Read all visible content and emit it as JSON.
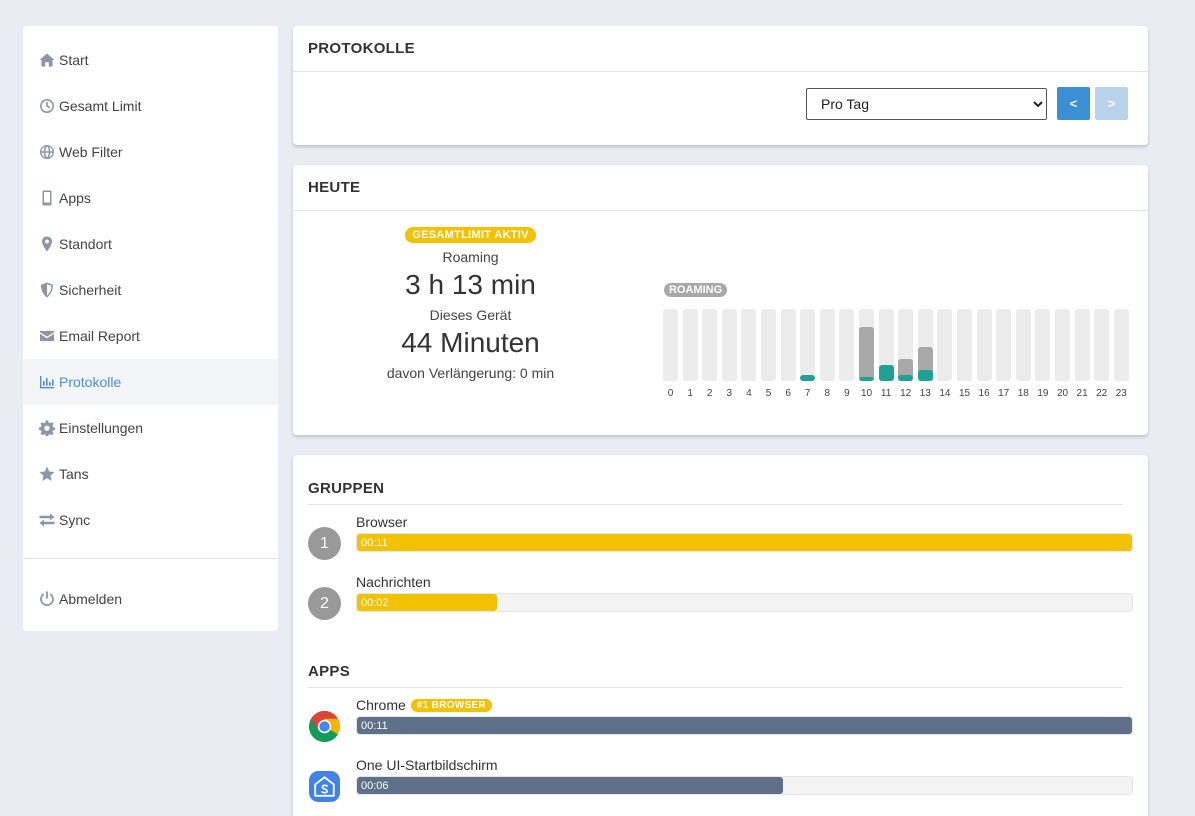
{
  "sidebar": {
    "items": [
      {
        "label": "Start",
        "icon": "home-icon"
      },
      {
        "label": "Gesamt Limit",
        "icon": "clock-icon"
      },
      {
        "label": "Web Filter",
        "icon": "globe-icon"
      },
      {
        "label": "Apps",
        "icon": "mobile-icon"
      },
      {
        "label": "Standort",
        "icon": "map-marker-icon"
      },
      {
        "label": "Sicherheit",
        "icon": "shield-icon"
      },
      {
        "label": "Email Report",
        "icon": "envelope-icon"
      },
      {
        "label": "Protokolle",
        "icon": "bar-chart-icon",
        "active": true
      },
      {
        "label": "Einstellungen",
        "icon": "gear-icon"
      },
      {
        "label": "Tans",
        "icon": "star-icon"
      },
      {
        "label": "Sync",
        "icon": "exchange-icon"
      }
    ],
    "logout": {
      "label": "Abmelden",
      "icon": "power-icon"
    }
  },
  "protokolle": {
    "title": "PROTOKOLLE",
    "period": {
      "selected": "Pro Tag",
      "options": [
        "Pro Tag"
      ]
    },
    "prev_label": "<",
    "next_label": ">"
  },
  "heute": {
    "title": "HEUTE",
    "badge": "GESAMTLIMIT AKTIV",
    "roaming_label": "Roaming",
    "roaming_value": "3 h 13 min",
    "device_label": "Dieses Gerät",
    "device_value": "44 Minuten",
    "extension": "davon Verlängerung: 0 min",
    "chart_badge": "ROAMING"
  },
  "chart_data": {
    "type": "bar",
    "categories": [
      "0",
      "1",
      "2",
      "3",
      "4",
      "5",
      "6",
      "7",
      "8",
      "9",
      "10",
      "11",
      "12",
      "13",
      "14",
      "15",
      "16",
      "17",
      "18",
      "19",
      "20",
      "21",
      "22",
      "23"
    ],
    "ylim": [
      0,
      60
    ],
    "series": [
      {
        "color": "#a8a8a8",
        "values": [
          0,
          0,
          0,
          0,
          0,
          0,
          0,
          0,
          0,
          0,
          45,
          0,
          18,
          28,
          0,
          0,
          0,
          0,
          0,
          0,
          0,
          0,
          0,
          0
        ]
      },
      {
        "color": "#1fa295",
        "values": [
          0,
          0,
          0,
          0,
          0,
          0,
          0,
          5,
          0,
          0,
          3,
          13,
          5,
          9,
          0,
          0,
          0,
          0,
          0,
          0,
          0,
          0,
          0,
          0
        ]
      }
    ]
  },
  "gruppen": {
    "title": "GRUPPEN",
    "items": [
      {
        "rank": "1",
        "name": "Browser",
        "time": "00:11",
        "fraction": 1.0
      },
      {
        "rank": "2",
        "name": "Nachrichten",
        "time": "00:02",
        "fraction": 0.18
      }
    ]
  },
  "apps": {
    "title": "APPS",
    "items": [
      {
        "name": "Chrome",
        "badge": "#1 BROWSER",
        "time": "00:11",
        "fraction": 1.0,
        "icon": "chrome-icon"
      },
      {
        "name": "One UI-Startbildschirm",
        "time": "00:06",
        "fraction": 0.55,
        "icon": "samsung-home-icon"
      }
    ]
  }
}
